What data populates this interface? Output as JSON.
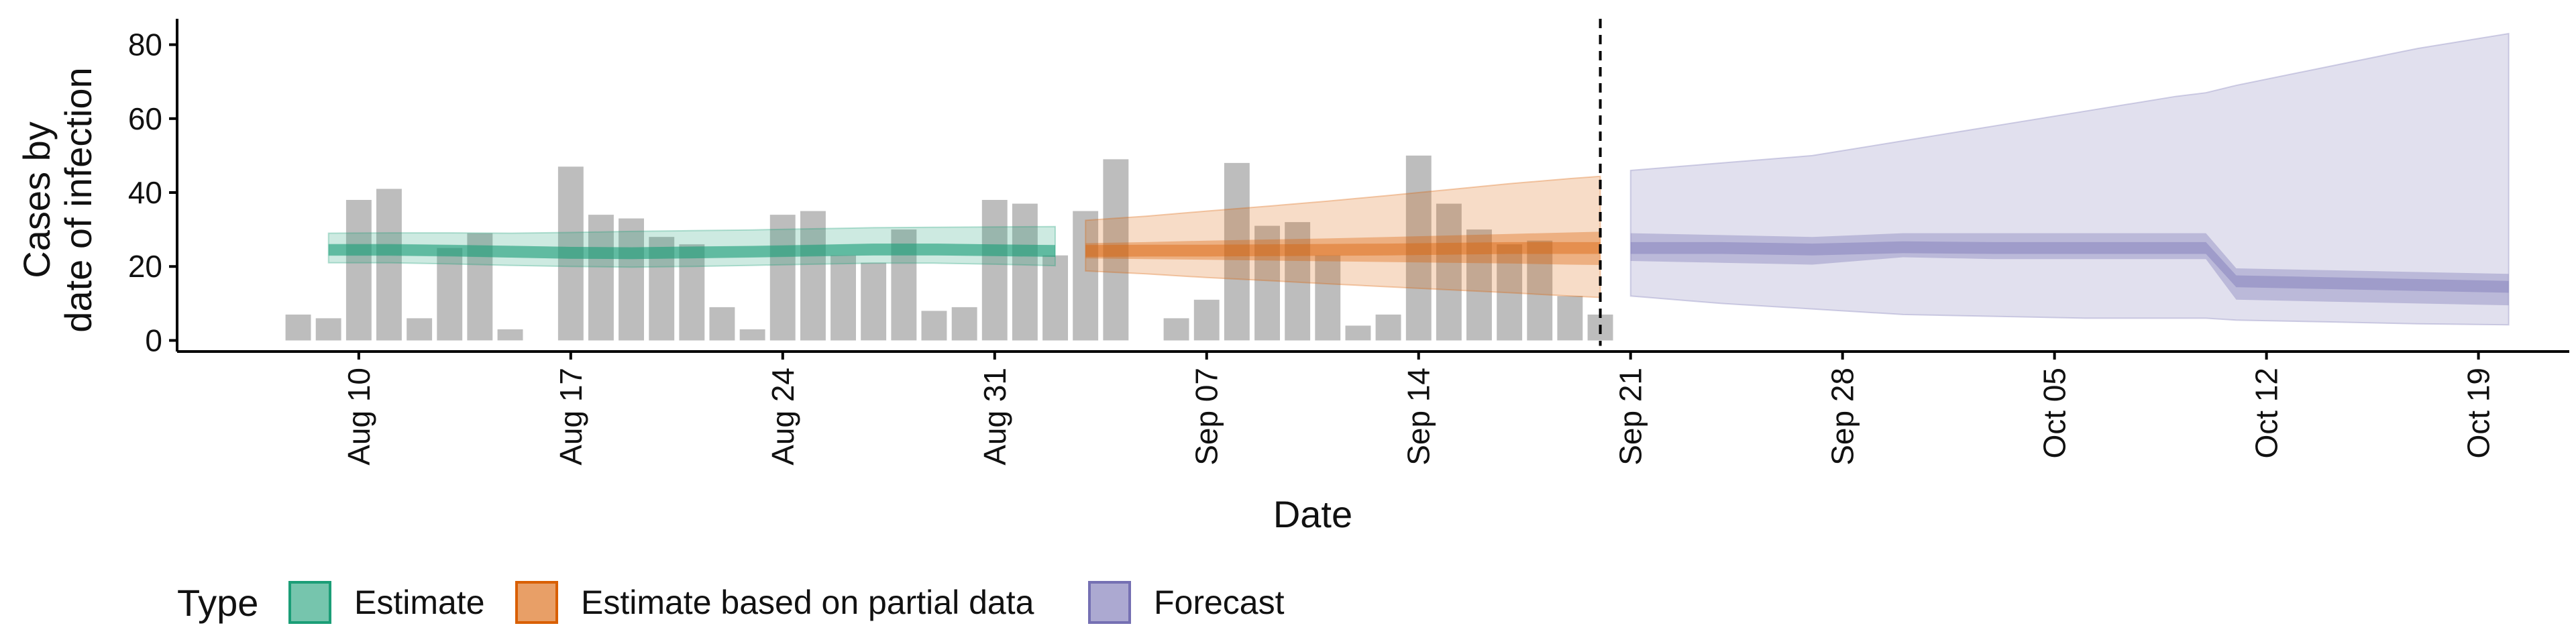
{
  "chart_data": {
    "type": "bar",
    "xlabel": "Date",
    "ylabel_lines": [
      "Cases by",
      "date of infection"
    ],
    "ylim": [
      -3,
      87
    ],
    "yticks": [
      0,
      20,
      40,
      60,
      80
    ],
    "xlim": [
      "2020-08-04",
      "2020-10-22"
    ],
    "xticks": [
      {
        "date": "2020-08-10",
        "label": "Aug 10"
      },
      {
        "date": "2020-08-17",
        "label": "Aug 17"
      },
      {
        "date": "2020-08-24",
        "label": "Aug 24"
      },
      {
        "date": "2020-08-31",
        "label": "Aug 31"
      },
      {
        "date": "2020-09-07",
        "label": "Sep 07"
      },
      {
        "date": "2020-09-14",
        "label": "Sep 14"
      },
      {
        "date": "2020-09-21",
        "label": "Sep 21"
      },
      {
        "date": "2020-09-28",
        "label": "Sep 28"
      },
      {
        "date": "2020-10-05",
        "label": "Oct 05"
      },
      {
        "date": "2020-10-12",
        "label": "Oct 12"
      },
      {
        "date": "2020-10-19",
        "label": "Oct 19"
      }
    ],
    "grid": false,
    "legend_position": "bottom",
    "legend_title": "Type",
    "legend": [
      {
        "label": "Estimate",
        "color": "#1b9e77"
      },
      {
        "label": "Estimate based on partial data",
        "color": "#d95f02"
      },
      {
        "label": "Forecast",
        "color": "#7570b3"
      }
    ],
    "forecast_start": "2020-09-20",
    "observed_cases": {
      "bar_color": "#bdbdbd",
      "dates": [
        "2020-08-08",
        "2020-08-09",
        "2020-08-10",
        "2020-08-11",
        "2020-08-12",
        "2020-08-13",
        "2020-08-14",
        "2020-08-15",
        "2020-08-16",
        "2020-08-17",
        "2020-08-18",
        "2020-08-19",
        "2020-08-20",
        "2020-08-21",
        "2020-08-22",
        "2020-08-23",
        "2020-08-24",
        "2020-08-25",
        "2020-08-26",
        "2020-08-27",
        "2020-08-28",
        "2020-08-29",
        "2020-08-30",
        "2020-08-31",
        "2020-09-01",
        "2020-09-02",
        "2020-09-03",
        "2020-09-04",
        "2020-09-05",
        "2020-09-06",
        "2020-09-07",
        "2020-09-08",
        "2020-09-09",
        "2020-09-10",
        "2020-09-11",
        "2020-09-12",
        "2020-09-13",
        "2020-09-14",
        "2020-09-15",
        "2020-09-16",
        "2020-09-17",
        "2020-09-18",
        "2020-09-19",
        "2020-09-20"
      ],
      "values": [
        7,
        6,
        38,
        41,
        6,
        25,
        29,
        3,
        0,
        47,
        34,
        33,
        28,
        26,
        9,
        3,
        34,
        35,
        23,
        21,
        30,
        8,
        9,
        38,
        37,
        23,
        35,
        49,
        0,
        6,
        11,
        48,
        31,
        32,
        23,
        4,
        7,
        50,
        37,
        30,
        26,
        27,
        12,
        7
      ]
    },
    "series": [
      {
        "name": "Estimate",
        "color": "#1b9e77",
        "dates": [
          "2020-08-09",
          "2020-08-11",
          "2020-08-13",
          "2020-08-15",
          "2020-08-17",
          "2020-08-19",
          "2020-08-21",
          "2020-08-23",
          "2020-08-25",
          "2020-08-27",
          "2020-08-29",
          "2020-08-31",
          "2020-09-02"
        ],
        "median": [
          24.5,
          24.5,
          24.3,
          24.0,
          23.7,
          23.6,
          23.8,
          24.0,
          24.3,
          24.6,
          24.6,
          24.4,
          24.2
        ],
        "lower_50": [
          23.0,
          23.0,
          22.8,
          22.4,
          22.1,
          22.0,
          22.2,
          22.5,
          22.8,
          23.0,
          23.0,
          22.8,
          22.6
        ],
        "upper_50": [
          26.0,
          26.0,
          25.8,
          25.6,
          25.3,
          25.2,
          25.4,
          25.5,
          25.8,
          26.2,
          26.2,
          26.0,
          25.8
        ],
        "lower_90": [
          21.0,
          21.0,
          20.7,
          20.3,
          20.0,
          19.8,
          20.0,
          20.3,
          20.6,
          20.9,
          20.9,
          20.6,
          20.2
        ],
        "upper_90": [
          29.0,
          29.1,
          29.1,
          29.0,
          29.2,
          29.5,
          29.7,
          29.9,
          30.2,
          30.5,
          30.6,
          30.7,
          30.8
        ]
      },
      {
        "name": "Estimate based on partial data",
        "color": "#d95f02",
        "dates": [
          "2020-09-03",
          "2020-09-05",
          "2020-09-07",
          "2020-09-09",
          "2020-09-11",
          "2020-09-13",
          "2020-09-15",
          "2020-09-17",
          "2020-09-19",
          "2020-09-20"
        ],
        "median": [
          24.2,
          24.3,
          24.3,
          24.4,
          24.5,
          24.6,
          24.8,
          25.0,
          25.0,
          25.0
        ],
        "lower_50": [
          22.2,
          22.0,
          21.8,
          21.6,
          21.4,
          21.2,
          21.0,
          20.8,
          20.5,
          20.4
        ],
        "upper_50": [
          26.3,
          26.6,
          27.0,
          27.3,
          27.6,
          28.0,
          28.4,
          28.8,
          29.2,
          29.4
        ],
        "lower_90": [
          18.8,
          18.0,
          17.0,
          16.2,
          15.3,
          14.5,
          13.7,
          12.9,
          12.0,
          11.6
        ],
        "upper_90": [
          32.5,
          33.6,
          35.0,
          36.3,
          37.7,
          39.2,
          40.8,
          42.4,
          43.8,
          44.4
        ]
      },
      {
        "name": "Forecast",
        "color": "#7570b3",
        "dates": [
          "2020-09-21",
          "2020-09-24",
          "2020-09-27",
          "2020-09-30",
          "2020-10-03",
          "2020-10-06",
          "2020-10-09",
          "2020-10-10",
          "2020-10-11",
          "2020-10-14",
          "2020-10-17",
          "2020-10-20"
        ],
        "median": [
          25.0,
          25.0,
          24.6,
          25.2,
          25.0,
          25.0,
          25.0,
          25.0,
          16.0,
          15.5,
          15.0,
          14.5
        ],
        "lower_50": [
          21.5,
          21.0,
          20.5,
          22.5,
          22.0,
          22.0,
          22.0,
          22.0,
          11.0,
          10.5,
          10.0,
          9.5
        ],
        "upper_50": [
          29.0,
          28.5,
          28.0,
          29.0,
          29.0,
          29.0,
          29.0,
          29.0,
          19.5,
          19.0,
          18.5,
          18.0
        ],
        "lower_90": [
          12.0,
          10.0,
          8.5,
          7.0,
          6.5,
          6.0,
          6.0,
          6.0,
          5.5,
          5.0,
          4.5,
          4.2
        ],
        "upper_90": [
          46.0,
          48.0,
          50.0,
          54.0,
          58.0,
          62.0,
          66.0,
          67.0,
          69.0,
          74.0,
          79.0,
          83.0
        ]
      }
    ]
  }
}
